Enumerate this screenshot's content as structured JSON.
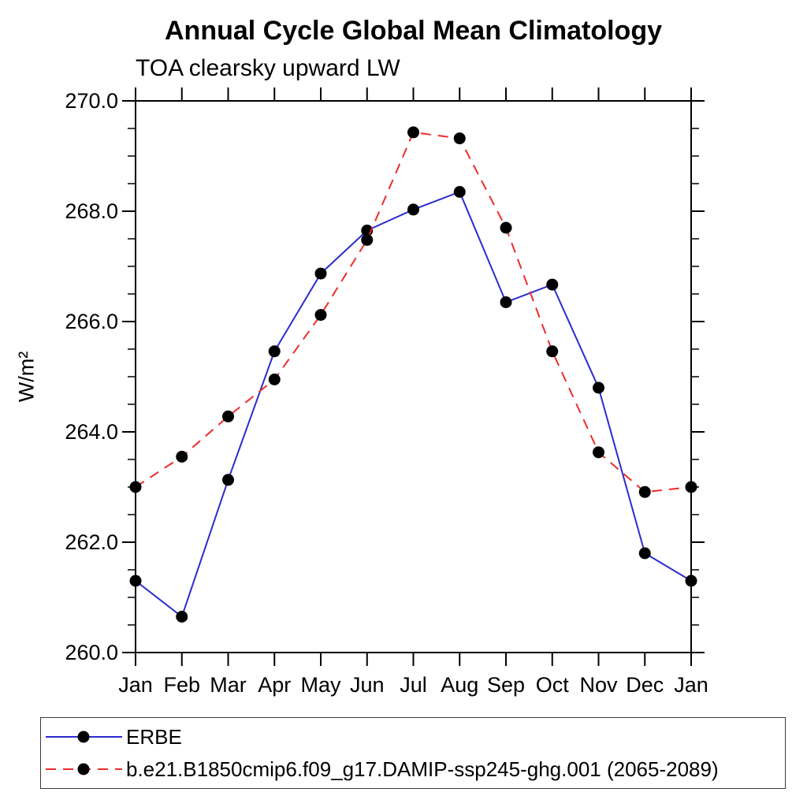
{
  "chart_data": {
    "type": "line",
    "title": "Annual Cycle Global Mean Climatology",
    "subtitle": "TOA clearsky upward LW",
    "ylabel": "W/m²",
    "xlabel": "",
    "ylim": [
      260.0,
      270.0
    ],
    "y_major_ticks": [
      260.0,
      262.0,
      264.0,
      266.0,
      268.0,
      270.0
    ],
    "y_minor_step": 0.5,
    "grid": false,
    "legend_position": "bottom-left-box",
    "categories": [
      "Jan",
      "Feb",
      "Mar",
      "Apr",
      "May",
      "Jun",
      "Jul",
      "Aug",
      "Sep",
      "Oct",
      "Nov",
      "Dec",
      "Jan"
    ],
    "marker": {
      "shape": "circle",
      "color": "#000000",
      "radius": 7.5
    },
    "series": [
      {
        "name": "ERBE",
        "color": "#2b2bd0",
        "line_style": "solid",
        "values": [
          261.3,
          260.65,
          263.13,
          265.46,
          266.87,
          267.65,
          268.03,
          268.35,
          266.35,
          266.67,
          264.8,
          261.8,
          261.3
        ]
      },
      {
        "name": "b.e21.B1850cmip6.f09_g17.DAMIP-ssp245-ghg.001 (2065-2089)",
        "color": "#ee2b2b",
        "line_style": "dashed",
        "values": [
          263.0,
          263.55,
          264.28,
          264.95,
          266.12,
          267.48,
          269.43,
          269.32,
          267.7,
          265.46,
          263.63,
          262.91,
          263.0
        ]
      }
    ]
  }
}
